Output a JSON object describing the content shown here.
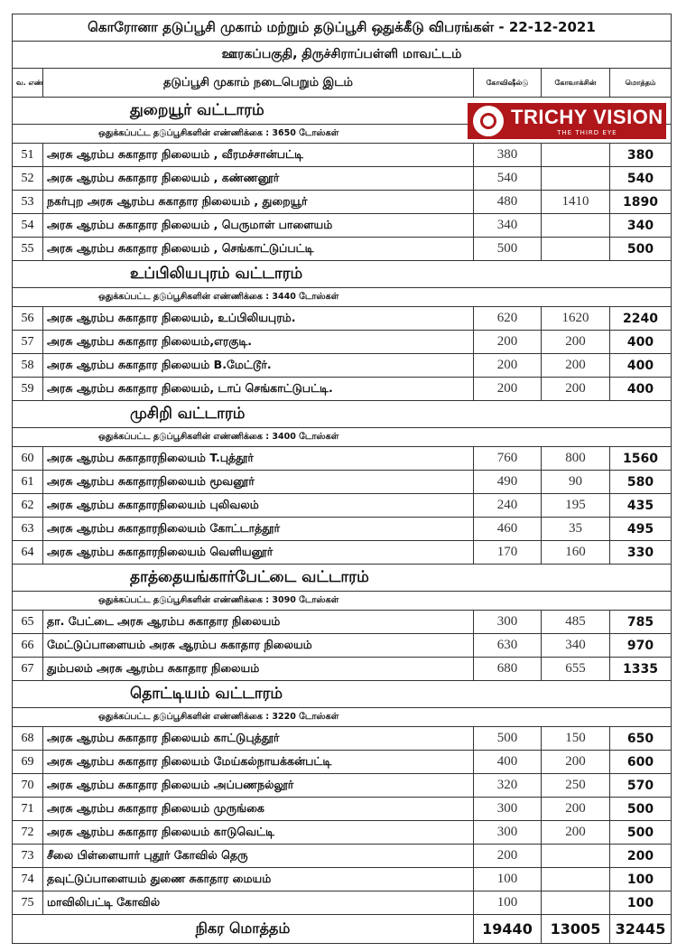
{
  "title": "கொரோனா தடுப்பூசி முகாம் மற்றும் தடுப்பூசி ஒதுக்கீடு விபரங்கள் - 22-12-2021",
  "subtitle": "ஊரகப்பகுதி, திருச்சிராப்பள்ளி மாவட்டம்",
  "headers": {
    "sno": "வ. எண்",
    "place": "தடுப்பூசி முகாம் நடைபெறும் இடம்",
    "covishield": "கோவிஷீல்டு",
    "covaxin": "கோவாக்சின்",
    "total": "மொத்தம்"
  },
  "logo": {
    "name": "TRICHY VISION",
    "tagline": "THE THIRD EYE",
    "color": "#b0171b"
  },
  "sections": [
    {
      "name": "துறையூர்  வட்டாரம்",
      "allocation": "ஒதுக்கப்பட்ட தடுப்பூசிகளின் எண்ணிக்கை  : 3650 டோஸ்கள்",
      "rows": [
        [
          "51",
          "அரசு ஆரம்ப சுகாதார நிலையம் , வீரமச்சான்பட்டி",
          "380",
          "",
          "380"
        ],
        [
          "52",
          "அரசு ஆரம்ப சுகாதார நிலையம் , கண்ணனூர்",
          "540",
          "",
          "540"
        ],
        [
          "53",
          "நகர்புற அரசு ஆரம்ப சுகாதார நிலையம் , துறையூர்",
          "480",
          "1410",
          "1890"
        ],
        [
          "54",
          "அரசு ஆரம்ப சுகாதார நிலையம் , பெருமாள் பாளையம்",
          "340",
          "",
          "340"
        ],
        [
          "55",
          "அரசு ஆரம்ப சுகாதார நிலையம் , செங்காட்டுப்பட்டி",
          "500",
          "",
          "500"
        ]
      ]
    },
    {
      "name": "உப்பிலியபுரம்  வட்டாரம்",
      "allocation": "ஒதுக்கப்பட்ட தடுப்பூசிகளின் எண்ணிக்கை  : 3440 டோஸ்கள்",
      "rows": [
        [
          "56",
          "அரசு ஆரம்ப சுகாதார நிலையம், உப்பிலியபுரம்.",
          "620",
          "1620",
          "2240"
        ],
        [
          "57",
          "அரசு ஆரம்ப சுகாதார நிலையம்,எரகுடி.",
          "200",
          "200",
          "400"
        ],
        [
          "58",
          "அரசு ஆரம்ப சுகாதார நிலையம் B.மேட்டூர்.",
          "200",
          "200",
          "400"
        ],
        [
          "59",
          "அரசு ஆரம்ப சுகாதார நிலையம், டாப் செங்காட்டுபட்டி.",
          "200",
          "200",
          "400"
        ]
      ]
    },
    {
      "name": "முசிறி  வட்டாரம்",
      "allocation": "ஒதுக்கப்பட்ட தடுப்பூசிகளின் எண்ணிக்கை  : 3400 டோஸ்கள்",
      "rows": [
        [
          "60",
          "அரசு ஆரம்ப சுகாதாரநிலையம்  T.புத்தூர்",
          "760",
          "800",
          "1560"
        ],
        [
          "61",
          "அரசு ஆரம்ப சுகாதாரநிலையம்  மூவனூர்",
          "490",
          "90",
          "580"
        ],
        [
          "62",
          "அரசு ஆரம்ப சுகாதாரநிலையம்  புலிவலம்",
          "240",
          "195",
          "435"
        ],
        [
          "63",
          "அரசு ஆரம்ப சுகாதாரநிலையம்  கோட்டாத்தூர்",
          "460",
          "35",
          "495"
        ],
        [
          "64",
          "அரசு ஆரம்ப சுகாதாரநிலையம்  வெளியனூர்",
          "170",
          "160",
          "330"
        ]
      ]
    },
    {
      "name": "தாத்தையங்கார்பேட்டை வட்டாரம்",
      "allocation": "ஒதுக்கப்பட்ட தடுப்பூசிகளின் எண்ணிக்கை  : 3090 டோஸ்கள்",
      "rows": [
        [
          "65",
          "தா. பேட்டை அரசு ஆரம்ப சுகாதார நிலையம்",
          "300",
          "485",
          "785"
        ],
        [
          "66",
          "மேட்டுப்பாளையம் அரசு ஆரம்ப சுகாதார நிலையம்",
          "630",
          "340",
          "970"
        ],
        [
          "67",
          "தும்பலம் அரசு ஆரம்ப சுகாதார நிலையம்",
          "680",
          "655",
          "1335"
        ]
      ]
    },
    {
      "name": "தொட்டியம்  வட்டாரம்",
      "allocation": "ஒதுக்கப்பட்ட தடுப்பூசிகளின் எண்ணிக்கை  : 3220 டோஸ்கள்",
      "rows": [
        [
          "68",
          "அரசு ஆரம்ப சுகாதார நிலையம் காட்டுபுத்தூர்",
          "500",
          "150",
          "650"
        ],
        [
          "69",
          "அரசு ஆரம்ப சுகாதார நிலையம் மேய்கல்நாயக்கன்பட்டி",
          "400",
          "200",
          "600"
        ],
        [
          "70",
          "அரசு ஆரம்ப சுகாதார நிலையம் அப்பணநல்லூர்",
          "320",
          "250",
          "570"
        ],
        [
          "71",
          "அரசு ஆரம்ப சுகாதார நிலையம் முருங்கை",
          "300",
          "200",
          "500"
        ],
        [
          "72",
          "அரசு ஆரம்ப சுகாதார நிலையம் காடுவெட்டி",
          "300",
          "200",
          "500"
        ],
        [
          "73",
          "சீலை பிள்ளையார் புதூர் கோவில் தெரு",
          "200",
          "",
          "200"
        ],
        [
          "74",
          "தவுட்டுப்பாளையம் துணை சுகாதார மையம்",
          "100",
          "",
          "100"
        ],
        [
          "75",
          "மாவிலிபட்டி கோவில்",
          "100",
          "",
          "100"
        ]
      ]
    }
  ],
  "grand_total": {
    "label": "நிகர மொத்தம்",
    "covishield": "19440",
    "covaxin": "13005",
    "total": "32445"
  }
}
